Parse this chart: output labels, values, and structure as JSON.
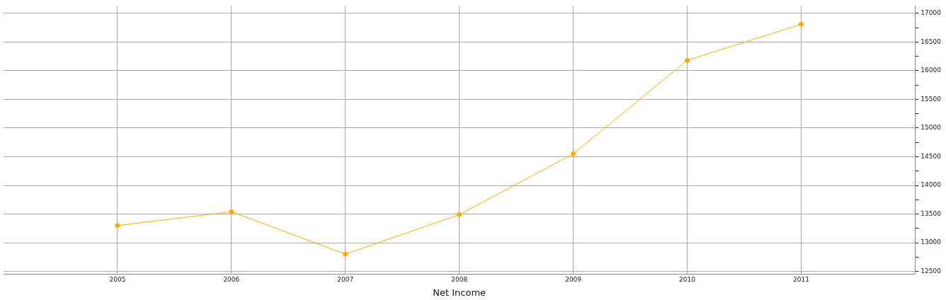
{
  "chart_data": {
    "type": "line",
    "xlabel": "Net Income",
    "x": [
      2005,
      2006,
      2007,
      2008,
      2009,
      2010,
      2011
    ],
    "series": [
      {
        "color": "#ffaa00",
        "values": [
          13300,
          13540,
          12800,
          13490,
          14550,
          16180,
          16810
        ]
      }
    ],
    "xlim": [
      2004,
      2012
    ],
    "xticks": [
      2005,
      2006,
      2007,
      2008,
      2009,
      2010,
      2011
    ],
    "ylim": [
      12450,
      17130
    ],
    "yticks": [
      12500,
      {
        "value": 12750,
        "label": null
      },
      13000,
      {
        "value": 13250,
        "label": null
      },
      13500,
      {
        "value": 13750,
        "label": null
      },
      14000,
      {
        "value": 14250,
        "label": null
      },
      14500,
      {
        "value": 14750,
        "label": null
      },
      15000,
      {
        "value": 15250,
        "label": null
      },
      15500,
      {
        "value": 15750,
        "label": null
      },
      16000,
      {
        "value": 16250,
        "label": null
      },
      16500,
      {
        "value": 16750,
        "label": null
      },
      17000
    ],
    "grid": true,
    "legend": false,
    "marker": "circle",
    "line_style": "solid"
  }
}
